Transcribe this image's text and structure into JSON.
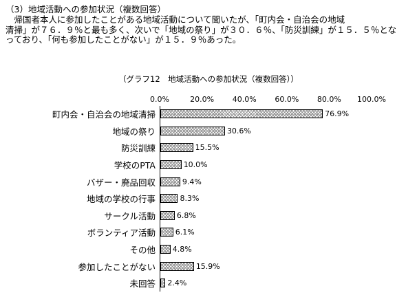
{
  "page": {
    "heading": "（3）地域活動への参加状況（複数回答）",
    "body_lines": [
      "　帰国者本人に参加したことがある地域活動について聞いたが、「町内会・自治会の地域",
      "清掃」が７６．９％と最も多く、次いで「地域の祭り」が３０．６％、「防災訓練」が１５．５％とな",
      "っており、「何も参加したことがない」が１５．９％あった。"
    ]
  },
  "chart_data": {
    "type": "bar",
    "orientation": "horizontal",
    "title": "（グラフ12　地域活動への参加状況（複数回答））",
    "categories": [
      "町内会・自治会の地域清掃",
      "地域の祭り",
      "防災訓練",
      "学校のPTA",
      "バザー・廃品回収",
      "地域の学校の行事",
      "サークル活動",
      "ボランティア活動",
      "その他",
      "参加したことがない",
      "未回答"
    ],
    "values": [
      76.9,
      30.6,
      15.5,
      10.0,
      9.4,
      8.3,
      6.8,
      6.1,
      4.8,
      15.9,
      2.4
    ],
    "value_labels": [
      "76.9%",
      "30.6%",
      "15.5%",
      "10.0%",
      "9.4%",
      "8.3%",
      "6.8%",
      "6.1%",
      "4.8%",
      "15.9%",
      "2.4%"
    ],
    "x_ticks": [
      "0.0%",
      "20.0%",
      "40.0%",
      "60.0%",
      "80.0%",
      "100.0%"
    ],
    "xlim": [
      0,
      100
    ],
    "xlabel": "",
    "ylabel": "",
    "grid": "off",
    "legend": "none",
    "bar_pattern": "gray-crosshatch",
    "bar_border_color": "#000000",
    "axis_line_color": "#000000",
    "background_color": "#ffffff"
  }
}
